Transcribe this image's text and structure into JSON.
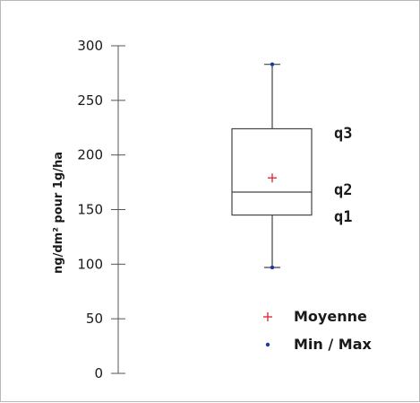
{
  "chart_data": {
    "type": "box",
    "ylabel": "ng/dm² pour 1g/ha",
    "ylim": [
      0,
      300
    ],
    "yticks": [
      0,
      50,
      100,
      150,
      200,
      250,
      300
    ],
    "box": {
      "min": 97,
      "q1": 145,
      "median": 166,
      "q3": 224,
      "max": 283,
      "mean": 179
    },
    "quartile_labels": {
      "q3": "q3",
      "q2": "q2",
      "q1": "q1"
    },
    "legend": [
      {
        "marker": "+",
        "label": "Moyenne",
        "color": "#e0303a"
      },
      {
        "marker": "•",
        "label": "Min / Max",
        "color": "#1e3a9e"
      }
    ],
    "colors": {
      "box": "#444444",
      "mean": "#e0303a",
      "minmax": "#1e3a9e",
      "axis": "#555555"
    }
  }
}
